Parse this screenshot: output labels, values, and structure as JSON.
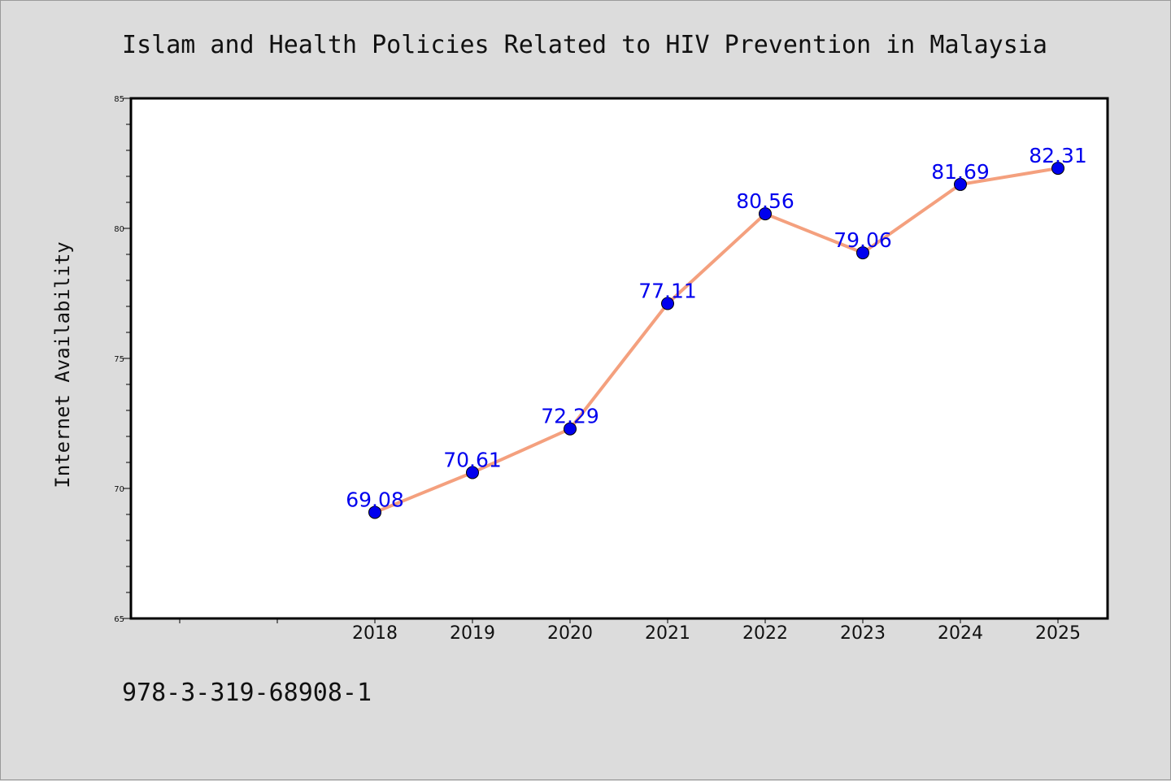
{
  "chart_data": {
    "type": "line",
    "title": "Islam and Health Policies Related to HIV Prevention in Malaysia",
    "xlabel": "",
    "ylabel": "Internet Availability",
    "categories": [
      "2018",
      "2019",
      "2020",
      "2021",
      "2022",
      "2023",
      "2024",
      "2025"
    ],
    "values": [
      69.08,
      70.61,
      72.29,
      77.11,
      80.56,
      79.06,
      81.69,
      82.31
    ],
    "data_labels": [
      "69.08",
      "70.61",
      "72.29",
      "77.11",
      "80.56",
      "79.06",
      "81.69",
      "82.31"
    ],
    "ylim": [
      65,
      85
    ],
    "yticks": [
      "65",
      "70",
      "75",
      "80",
      "85"
    ],
    "grid": false,
    "legend": "none",
    "line_color": "#f4a07e",
    "marker_color": "#0000ee",
    "label_color": "#0000ee"
  },
  "footer": {
    "code": "978-3-319-68908-1"
  }
}
